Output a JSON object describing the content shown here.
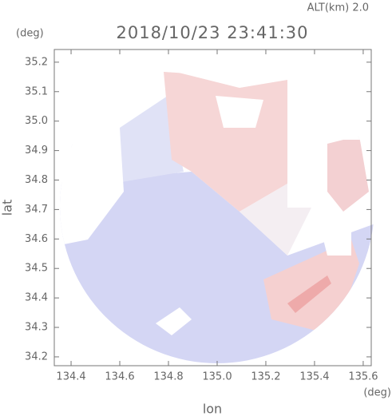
{
  "chart_data": {
    "type": "image",
    "title": "2018/10/23 23:41:30",
    "subtitle": "ALT(km) 2.0",
    "x_label": "lon",
    "y_label": "lat",
    "x_unit": "(deg)",
    "y_unit": "(deg)",
    "xlim": [
      134.331,
      135.633
    ],
    "ylim": [
      34.17,
      35.243
    ],
    "xticks": [
      134.4,
      134.6,
      134.8,
      {
        "value": 135,
        "label": "135.0"
      },
      135.2,
      135.4,
      135.6
    ],
    "yticks": [
      34.2,
      34.3,
      34.4,
      34.5,
      34.6,
      34.7,
      34.8,
      34.9,
      {
        "value": 35,
        "label": "35.0"
      },
      35.1,
      35.2
    ]
  }
}
